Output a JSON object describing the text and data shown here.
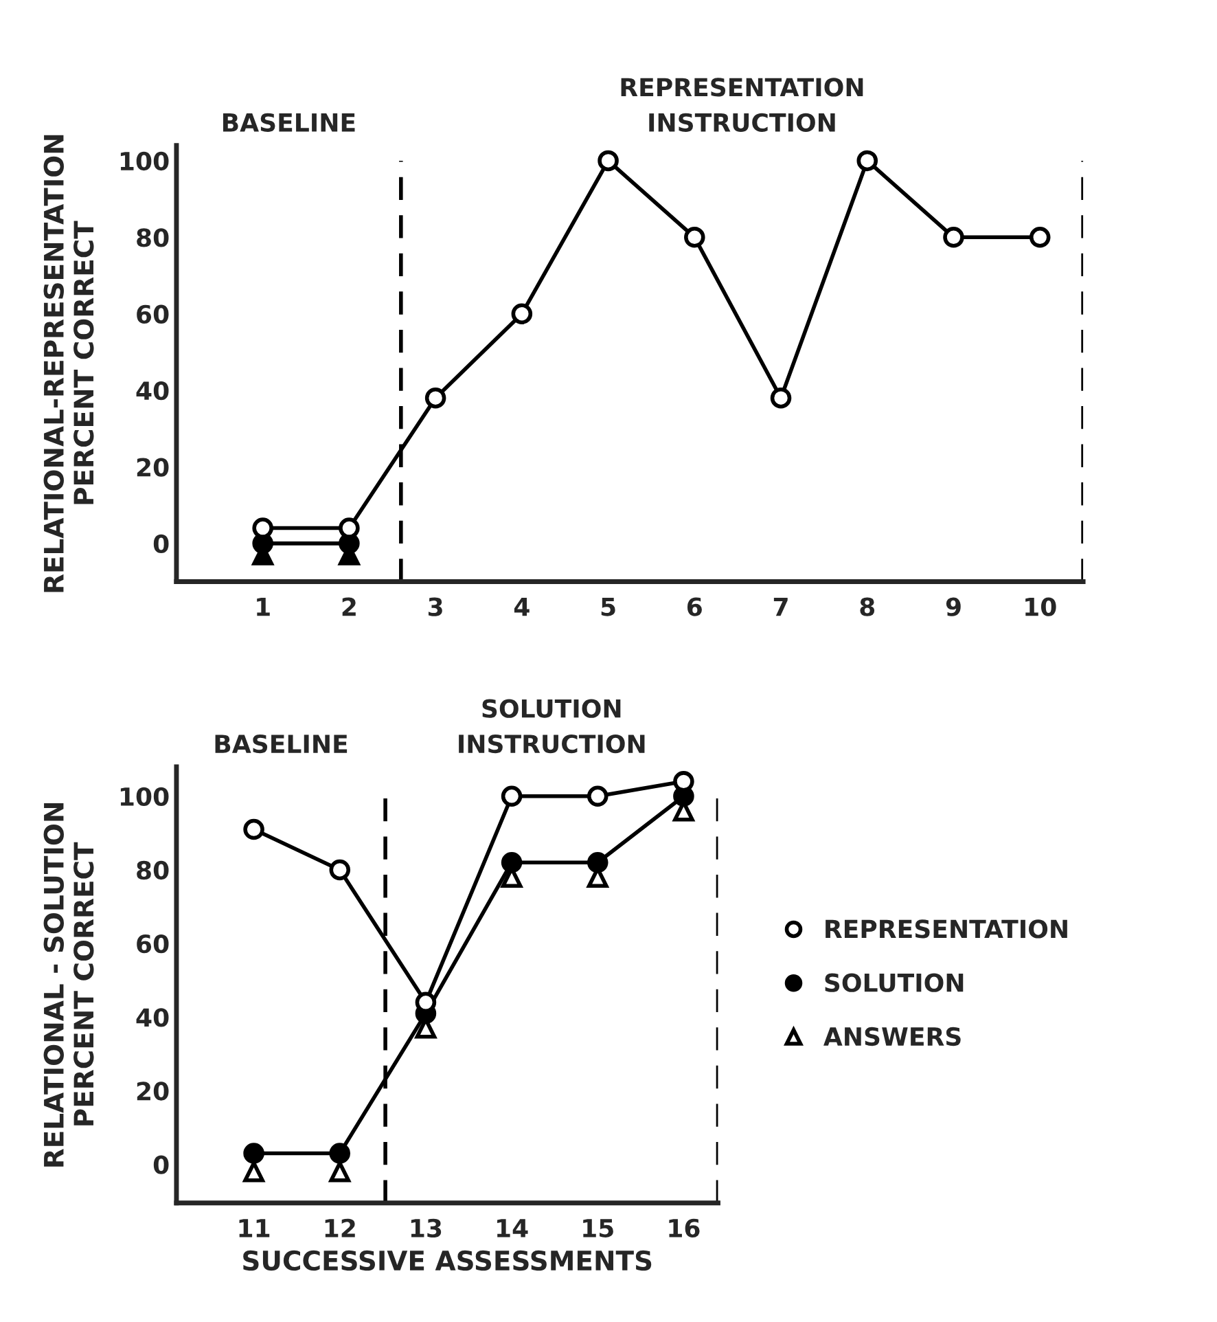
{
  "chart_data": [
    {
      "type": "line",
      "xlabel": null,
      "ylabel": "RELATIONAL-REPRESENTATION\nPERCENT CORRECT",
      "annotations": [
        "BASELINE",
        "REPRESENTATION\nINSTRUCTION"
      ],
      "x": [
        1,
        2,
        3,
        4,
        5,
        6,
        7,
        8,
        9,
        10
      ],
      "xlim": [
        0,
        10.5
      ],
      "xticks": [
        1,
        2,
        3,
        4,
        5,
        6,
        7,
        8,
        9,
        10
      ],
      "ylim": [
        -10,
        104
      ],
      "yticks": [
        0,
        20,
        40,
        60,
        80,
        100
      ],
      "grid": false,
      "legend": false,
      "series": [
        {
          "color": "#000000",
          "marker": "circle_open",
          "line_style": "solid",
          "values": [
            4,
            4,
            38,
            60,
            100,
            80,
            38,
            100,
            80,
            80
          ]
        },
        {
          "color": "#000000",
          "marker": "circle",
          "line_style": "solid",
          "values": [
            0,
            0,
            null,
            null,
            null,
            null,
            null,
            null,
            null,
            null
          ]
        },
        {
          "type": "scatter",
          "color": "#000000",
          "marker": "triangle",
          "values": [
            -3,
            -3,
            null,
            null,
            null,
            null,
            null,
            null,
            null,
            null
          ]
        }
      ],
      "ref_lines": [
        {
          "axis": "x",
          "value": 2.6,
          "label": null,
          "line_style": "dashed"
        },
        {
          "axis": "x",
          "value": 10.5,
          "label": null,
          "line_style": "dashed"
        }
      ]
    },
    {
      "type": "line",
      "xlabel": "SUCCESSIVE ASSESSMENTS",
      "ylabel": "RELATIONAL - SOLUTION\nPERCENT CORRECT",
      "annotations": [
        "BASELINE",
        "SOLUTION\nINSTRUCTION"
      ],
      "x": [
        11,
        12,
        13,
        14,
        15,
        16
      ],
      "xlim": [
        10.1,
        16.4
      ],
      "xticks": [
        11,
        12,
        13,
        14,
        15,
        16
      ],
      "ylim": [
        -10.5,
        108
      ],
      "yticks": [
        0,
        20,
        40,
        60,
        80,
        100
      ],
      "grid": false,
      "legend": "right",
      "series": [
        {
          "name": "REPRESENTATION",
          "color": "#000000",
          "marker": "circle_open",
          "line_style": "solid",
          "values": [
            91,
            80,
            44,
            100,
            100,
            104
          ]
        },
        {
          "name": "SOLUTION",
          "color": "#000000",
          "marker": "circle",
          "line_style": "solid",
          "values": [
            3,
            3,
            41,
            82,
            82,
            100
          ]
        },
        {
          "type": "scatter",
          "name": "ANSWERS",
          "color": "#000000",
          "marker": "triangle_open",
          "values": [
            -2,
            -2,
            37,
            78,
            78,
            96
          ]
        }
      ],
      "ref_lines": [
        {
          "axis": "x",
          "value": 12.53,
          "label": null,
          "line_style": "dashed"
        },
        {
          "axis": "x",
          "value": 16.4,
          "label": null,
          "line_style": "dashed"
        }
      ]
    }
  ]
}
